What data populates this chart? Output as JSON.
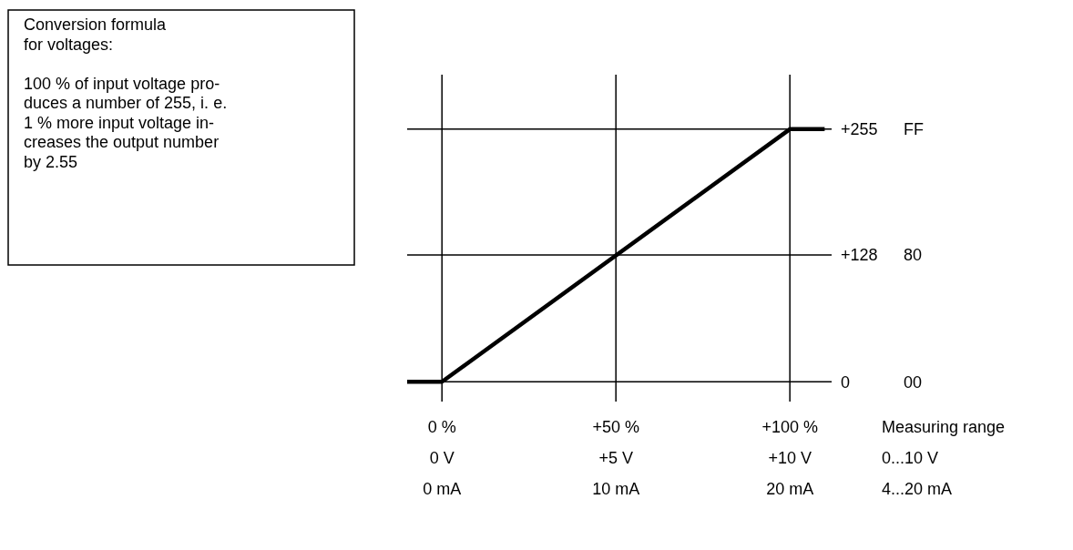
{
  "chart_data": {
    "type": "line",
    "xlabel": "Measuring range\n0...10 V\n4...20 mA",
    "annotations": [
      "Conversion formula\nfor voltages:\n\n100 % of input voltage pro-\nduces a number of 255, i. e.\n1 % more input voltage in-\ncreases the output number\nby 2.55",
      "FF",
      "80",
      "00",
      "0 mA",
      "10 mA",
      "20 mA"
    ],
    "xlim": [
      -10,
      112
    ],
    "ylim": [
      -20,
      310
    ],
    "xticks": [
      {
        "value": 0,
        "label": "0 %"
      },
      {
        "value": 50,
        "label": "+50 %"
      },
      {
        "value": 100,
        "label": "+100 %"
      }
    ],
    "x2lim": [
      -1,
      11.2
    ],
    "x2ticks": [
      {
        "value": 0,
        "label": "0 V"
      },
      {
        "value": 5,
        "label": "+5 V"
      },
      {
        "value": 10,
        "label": "+10 V"
      }
    ],
    "yticks": [
      {
        "value": 0,
        "label": "0"
      },
      {
        "value": 128,
        "label": "+128"
      },
      {
        "value": 255,
        "label": "+255"
      }
    ],
    "grid": true,
    "series": [
      {
        "color": "#000000",
        "x": [
          -10,
          0,
          100,
          110
        ],
        "values": [
          0,
          0,
          255,
          255
        ]
      }
    ]
  }
}
